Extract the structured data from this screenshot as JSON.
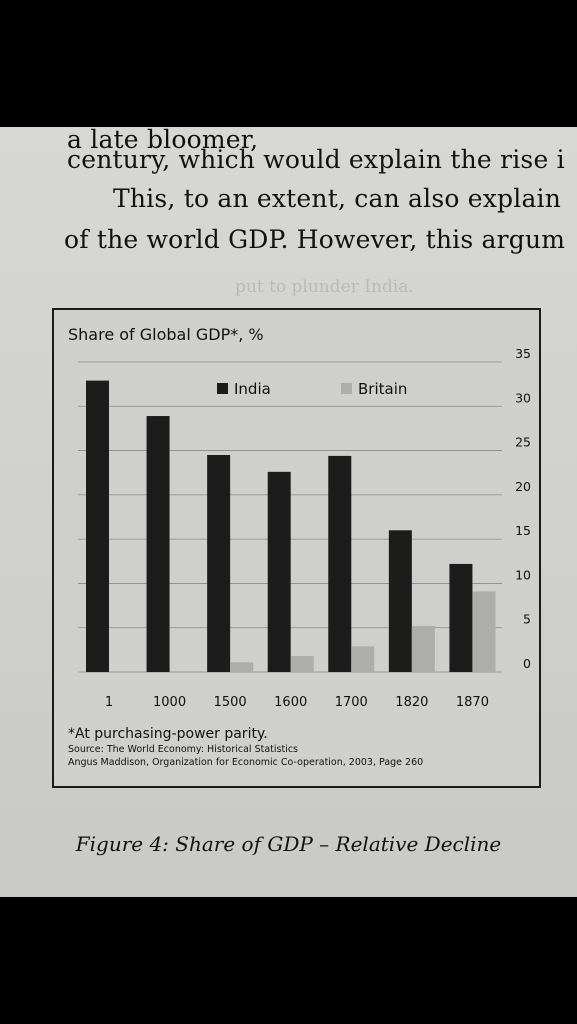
{
  "text_lines": [
    "a late bloomer, ",
    "century, which would explain the rise i",
    "This, to an extent, can also explain",
    "of the world GDP. However, this argum"
  ],
  "chart_data": {
    "type": "bar",
    "title": "Share of Global GDP*, %",
    "categories": [
      "1",
      "1000",
      "1500",
      "1600",
      "1700",
      "1820",
      "1870"
    ],
    "series": [
      {
        "name": "India",
        "color": "#1c1c1c",
        "values": [
          32.9,
          28.9,
          24.5,
          22.6,
          24.4,
          16.0,
          12.2
        ]
      },
      {
        "name": "Britain",
        "color": "#adadaa",
        "values": [
          0,
          0,
          1.1,
          1.8,
          2.9,
          5.2,
          9.1
        ]
      }
    ],
    "ylim": [
      0,
      35
    ],
    "yticks": [
      0,
      5,
      10,
      15,
      20,
      25,
      30,
      35
    ],
    "grid": true,
    "legend": "top-center",
    "footnote": "*At purchasing-power parity.",
    "source_line1": "Source: The World Economy: Historical Statistics",
    "source_line2": "Angus Maddison, Organization for Economic Co-operation, 2003, Page 260"
  },
  "caption": "Figure 4: Share of GDP – Relative Decline"
}
